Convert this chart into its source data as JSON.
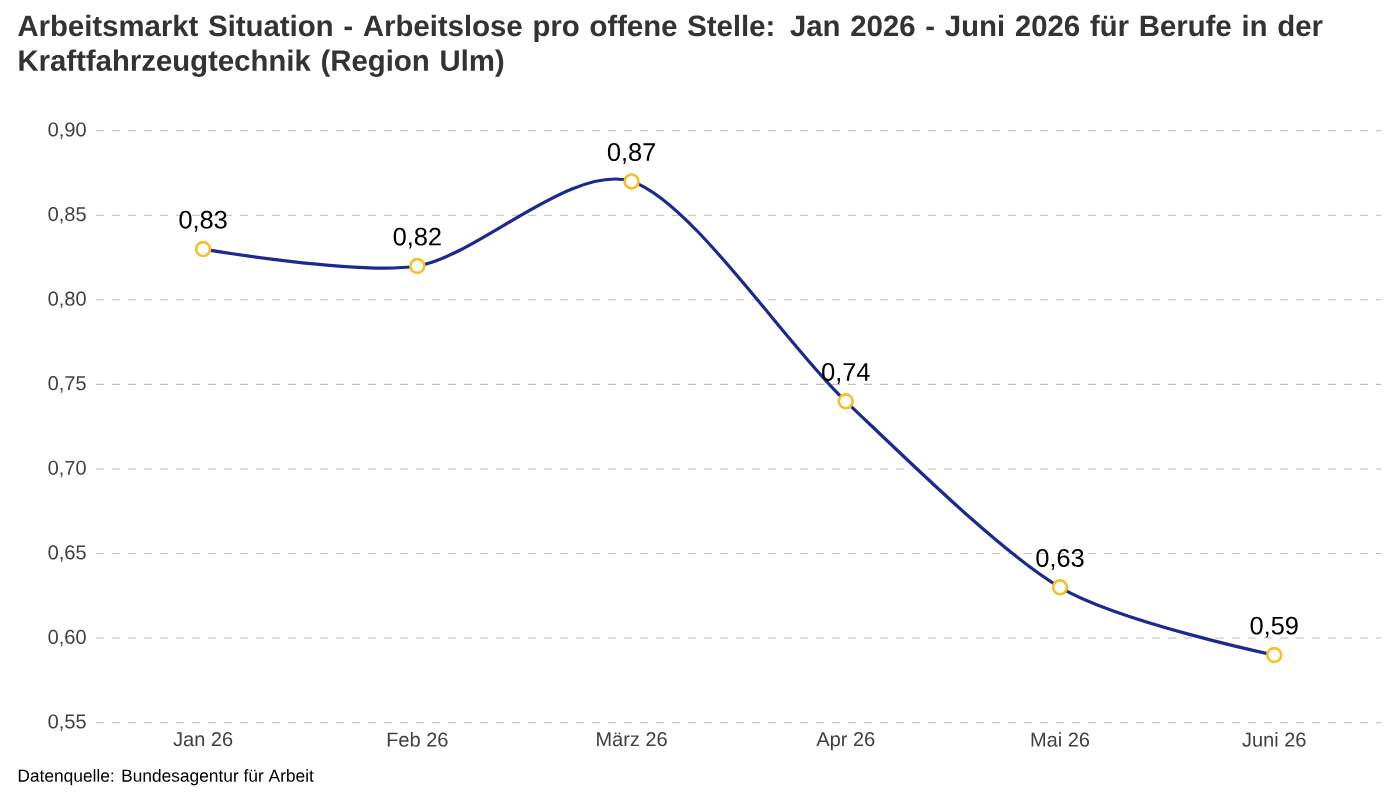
{
  "chart_data": {
    "type": "line",
    "title": "Arbeitsmarkt Situation - Arbeitslose pro offene Stelle: Jan 2026 - Juni 2026 für Berufe in der Kraftfahrzeugtechnik (Region Ulm)",
    "categories": [
      "Jan 26",
      "Feb 26",
      "März 26",
      "Apr 26",
      "Mai 26",
      "Juni 26"
    ],
    "series": [
      {
        "color": "#1b2a8f",
        "values": [
          0.83,
          0.82,
          0.87,
          0.74,
          0.63,
          0.59
        ],
        "value_labels": [
          "0,83",
          "0,82",
          "0,87",
          "0,74",
          "0,63",
          "0,59"
        ]
      }
    ],
    "ylim": [
      0.55,
      0.9
    ],
    "yticks": [
      {
        "value": 0.55,
        "label": "0,55"
      },
      {
        "value": 0.6,
        "label": "0,60"
      },
      {
        "value": 0.65,
        "label": "0,65"
      },
      {
        "value": 0.7,
        "label": "0,70"
      },
      {
        "value": 0.75,
        "label": "0,75"
      },
      {
        "value": 0.8,
        "label": "0,80"
      },
      {
        "value": 0.85,
        "label": "0,85"
      },
      {
        "value": 0.9,
        "label": "0,90"
      }
    ],
    "grid": "y",
    "marker": "circle",
    "line_style": "solid",
    "annotations": [
      "Datenquelle: Bundesagentur für Arbeit"
    ]
  }
}
